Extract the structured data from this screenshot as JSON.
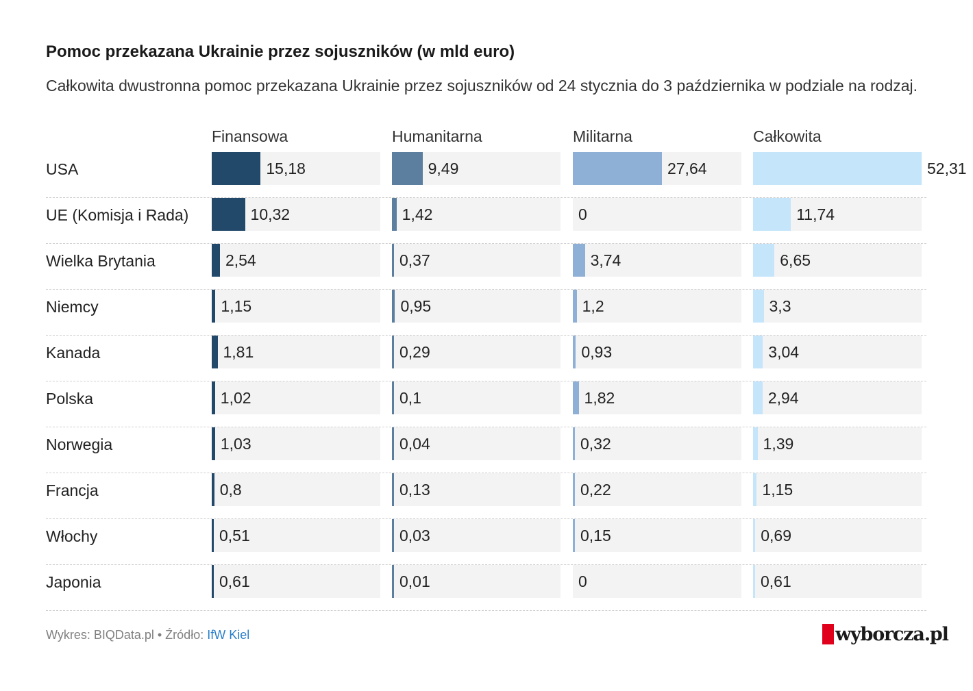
{
  "title": "Pomoc przekazana Ukrainie przez sojuszników (w mld euro)",
  "subtitle": "Całkowita dwustronna pomoc przekazana Ukrainie przez sojuszników od 24 stycznia do 3 października w podziale na rodzaj.",
  "footer": {
    "source_prefix": "Wykres: BIQData.pl • Źródło: ",
    "source_link": "IfW Kiel",
    "brand": "wyborcza.pl"
  },
  "colors": {
    "Finansowa": "#22486a",
    "Humanitarna": "#5c7fa0",
    "Militarna": "#8fb0d6",
    "Całkowita": "#c5e5fb"
  },
  "chart_data": {
    "type": "table",
    "title": "Pomoc przekazana Ukrainie przez sojuszników (w mld euro)",
    "subtitle": "Całkowita dwustronna pomoc przekazana Ukrainie przez sojuszników od 24 stycznia do 3 października w podziale na rodzaj.",
    "columns": [
      "Finansowa",
      "Humanitarna",
      "Militarna",
      "Całkowita"
    ],
    "rows": [
      {
        "label": "USA",
        "values": [
          15.18,
          9.49,
          27.64,
          52.31
        ],
        "labels": [
          "15,18",
          "9,49",
          "27,64",
          "52,31"
        ]
      },
      {
        "label": "UE (Komisja i Rada)",
        "values": [
          10.32,
          1.42,
          0,
          11.74
        ],
        "labels": [
          "10,32",
          "1,42",
          "0",
          "11,74"
        ]
      },
      {
        "label": "Wielka Brytania",
        "values": [
          2.54,
          0.37,
          3.74,
          6.65
        ],
        "labels": [
          "2,54",
          "0,37",
          "3,74",
          "6,65"
        ]
      },
      {
        "label": "Niemcy",
        "values": [
          1.15,
          0.95,
          1.2,
          3.3
        ],
        "labels": [
          "1,15",
          "0,95",
          "1,2",
          "3,3"
        ]
      },
      {
        "label": "Kanada",
        "values": [
          1.81,
          0.29,
          0.93,
          3.04
        ],
        "labels": [
          "1,81",
          "0,29",
          "0,93",
          "3,04"
        ]
      },
      {
        "label": "Polska",
        "values": [
          1.02,
          0.1,
          1.82,
          2.94
        ],
        "labels": [
          "1,02",
          "0,1",
          "1,82",
          "2,94"
        ]
      },
      {
        "label": "Norwegia",
        "values": [
          1.03,
          0.04,
          0.32,
          1.39
        ],
        "labels": [
          "1,03",
          "0,04",
          "0,32",
          "1,39"
        ]
      },
      {
        "label": "Francja",
        "values": [
          0.8,
          0.13,
          0.22,
          1.15
        ],
        "labels": [
          "0,8",
          "0,13",
          "0,22",
          "1,15"
        ]
      },
      {
        "label": "Włochy",
        "values": [
          0.51,
          0.03,
          0.15,
          0.69
        ],
        "labels": [
          "0,51",
          "0,03",
          "0,15",
          "0,69"
        ]
      },
      {
        "label": "Japonia",
        "values": [
          0.61,
          0.01,
          0,
          0.61
        ],
        "labels": [
          "0,61",
          "0,01",
          "0",
          "0,61"
        ]
      }
    ],
    "column_max": [
      52.31,
      52.31,
      52.31,
      52.31
    ]
  }
}
